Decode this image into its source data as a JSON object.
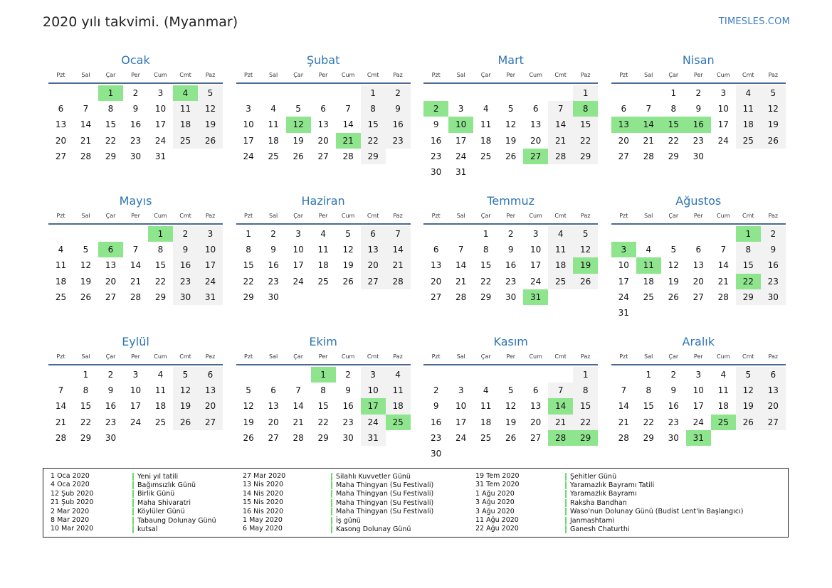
{
  "header": {
    "title": "2020 yılı takvimi. (Myanmar)",
    "brand": "TIMESLES.COM"
  },
  "colors": {
    "accent": "#2e75b6",
    "holiday": "#8ee58e",
    "weekend": "#f2f2f2"
  },
  "weekdays": [
    "Pzt",
    "Sal",
    "Çar",
    "Per",
    "Cum",
    "Cmt",
    "Paz"
  ],
  "months": [
    {
      "name": "Ocak",
      "start": 3,
      "days": 31,
      "holidays": [
        1,
        4
      ]
    },
    {
      "name": "Şubat",
      "start": 6,
      "days": 29,
      "holidays": [
        12,
        21
      ]
    },
    {
      "name": "Mart",
      "start": 7,
      "days": 31,
      "holidays": [
        2,
        8,
        10,
        27
      ]
    },
    {
      "name": "Nisan",
      "start": 3,
      "days": 30,
      "holidays": [
        13,
        14,
        15,
        16
      ]
    },
    {
      "name": "Mayıs",
      "start": 5,
      "days": 31,
      "holidays": [
        1,
        6
      ]
    },
    {
      "name": "Haziran",
      "start": 1,
      "days": 30,
      "holidays": []
    },
    {
      "name": "Temmuz",
      "start": 3,
      "days": 31,
      "holidays": [
        19,
        31
      ]
    },
    {
      "name": "Ağustos",
      "start": 6,
      "days": 31,
      "holidays": [
        1,
        3,
        11,
        22
      ]
    },
    {
      "name": "Eylül",
      "start": 2,
      "days": 30,
      "holidays": []
    },
    {
      "name": "Ekim",
      "start": 4,
      "days": 31,
      "holidays": [
        1,
        17,
        25
      ]
    },
    {
      "name": "Kasım",
      "start": 7,
      "days": 30,
      "holidays": [
        14,
        28,
        29
      ]
    },
    {
      "name": "Aralık",
      "start": 2,
      "days": 31,
      "holidays": [
        25,
        31
      ]
    }
  ],
  "legend": [
    [
      {
        "date": "1 Oca 2020",
        "name": "Yeni yıl tatili"
      },
      {
        "date": "4 Oca 2020",
        "name": "Bağımsızlık Günü"
      },
      {
        "date": "12 Şub 2020",
        "name": "Birlik Günü"
      },
      {
        "date": "21 Şub 2020",
        "name": "Maha Shivaratri"
      },
      {
        "date": "2 Mar 2020",
        "name": "Köylüler Günü"
      },
      {
        "date": "8 Mar 2020",
        "name": "Tabaung Dolunay Günü"
      },
      {
        "date": "10 Mar 2020",
        "name": "kutsal"
      }
    ],
    [
      {
        "date": "27 Mar 2020",
        "name": "Silahlı Kuvvetler Günü"
      },
      {
        "date": "13 Nis 2020",
        "name": "Maha Thingyan (Su Festivali)"
      },
      {
        "date": "14 Nis 2020",
        "name": "Maha Thingyan (Su Festivali)"
      },
      {
        "date": "15 Nis 2020",
        "name": "Maha Thingyan (Su Festivali)"
      },
      {
        "date": "16 Nis 2020",
        "name": "Maha Thingyan (Su Festivali)"
      },
      {
        "date": "1 May 2020",
        "name": "İş günü"
      },
      {
        "date": "6 May 2020",
        "name": "Kasong Dolunay Günü"
      }
    ],
    [
      {
        "date": "19 Tem 2020",
        "name": "Şehitler Günü"
      },
      {
        "date": "31 Tem 2020",
        "name": "Yaramazlık Bayramı Tatili"
      },
      {
        "date": "1 Ağu 2020",
        "name": "Yaramazlık Bayramı"
      },
      {
        "date": "3 Ağu 2020",
        "name": "Raksha Bandhan"
      },
      {
        "date": "3 Ağu 2020",
        "name": "Waso'nun Dolunay Günü (Budist Lent'in Başlangıcı)"
      },
      {
        "date": "11 Ağu 2020",
        "name": "Janmashtami"
      },
      {
        "date": "22 Ağu 2020",
        "name": "Ganesh Chaturthi"
      }
    ]
  ]
}
